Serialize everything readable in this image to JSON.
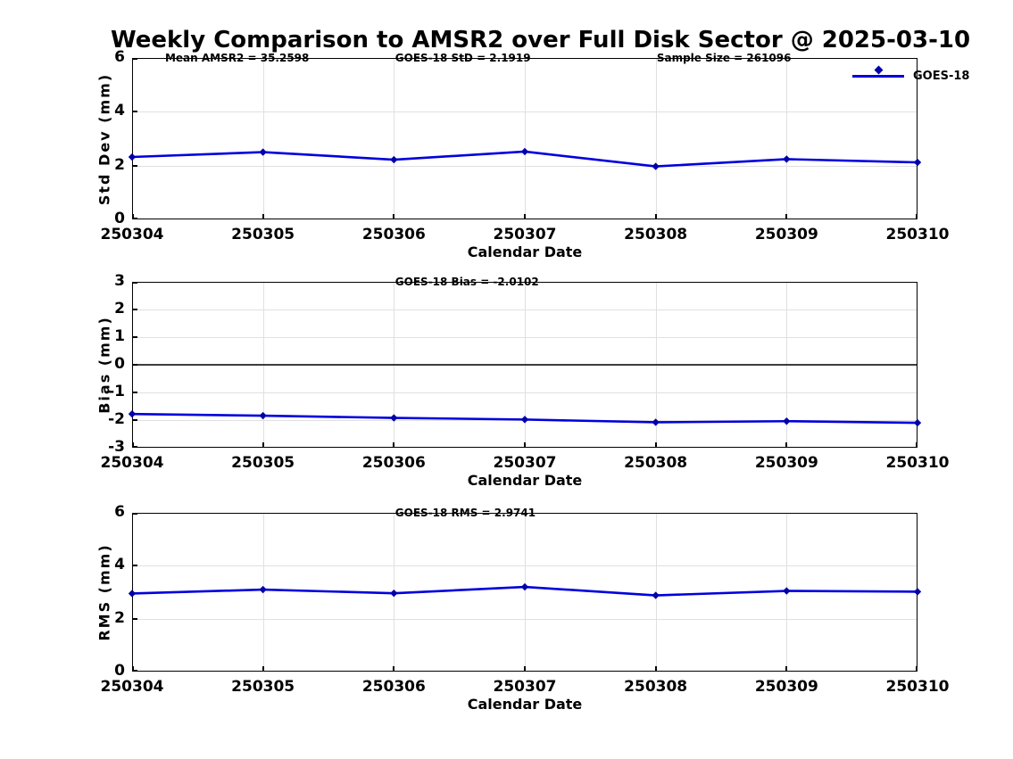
{
  "title": "Weekly Comparison to AMSR2 over Full Disk Sector @ 2025-03-10",
  "legend": {
    "label": "GOES-18"
  },
  "colors": {
    "line": "#0000DD",
    "marker": "#0000A8",
    "grid": "#E0E0E0",
    "axis": "#000000",
    "zero_line": "#000000"
  },
  "chart_data": [
    {
      "type": "line",
      "categories": [
        "250304",
        "250305",
        "250306",
        "250307",
        "250308",
        "250309",
        "250310"
      ],
      "series": [
        {
          "name": "GOES-18",
          "values": [
            2.32,
            2.5,
            2.22,
            2.52,
            1.97,
            2.24,
            2.12
          ]
        }
      ],
      "xlabel": "Calendar Date",
      "ylabel": "Std Dev (mm)",
      "ylim": [
        0,
        6
      ],
      "yticks": [
        0,
        2,
        4,
        6
      ],
      "grid": true,
      "legend_position": "top-right",
      "annotations": [
        {
          "text": "Mean AMSR2 = 35.2598",
          "x": 0.042
        },
        {
          "text": "GOES-18 StD = 2.1919",
          "x": 0.335
        },
        {
          "text": "Sample Size = 261096",
          "x": 0.668
        }
      ]
    },
    {
      "type": "line",
      "categories": [
        "250304",
        "250305",
        "250306",
        "250307",
        "250308",
        "250309",
        "250310"
      ],
      "series": [
        {
          "name": "GOES-18",
          "values": [
            -1.78,
            -1.84,
            -1.92,
            -1.98,
            -2.08,
            -2.04,
            -2.1
          ]
        }
      ],
      "xlabel": "Calendar Date",
      "ylabel": "Bias (mm)",
      "ylim": [
        -3,
        3
      ],
      "yticks": [
        -3,
        -2,
        -1,
        0,
        1,
        2,
        3
      ],
      "grid": true,
      "zero_line": true,
      "annotations": [
        {
          "text": "GOES-18 Bias  = -2.0102",
          "x": 0.335
        }
      ]
    },
    {
      "type": "line",
      "categories": [
        "250304",
        "250305",
        "250306",
        "250307",
        "250308",
        "250309",
        "250310"
      ],
      "series": [
        {
          "name": "GOES-18",
          "values": [
            2.95,
            3.1,
            2.96,
            3.2,
            2.88,
            3.05,
            3.02
          ]
        }
      ],
      "xlabel": "Calendar Date",
      "ylabel": "RMS (mm)",
      "ylim": [
        0,
        6
      ],
      "yticks": [
        0,
        2,
        4,
        6
      ],
      "grid": true,
      "annotations": [
        {
          "text": "GOES-18 RMS = 2.9741",
          "x": 0.335
        }
      ]
    }
  ]
}
